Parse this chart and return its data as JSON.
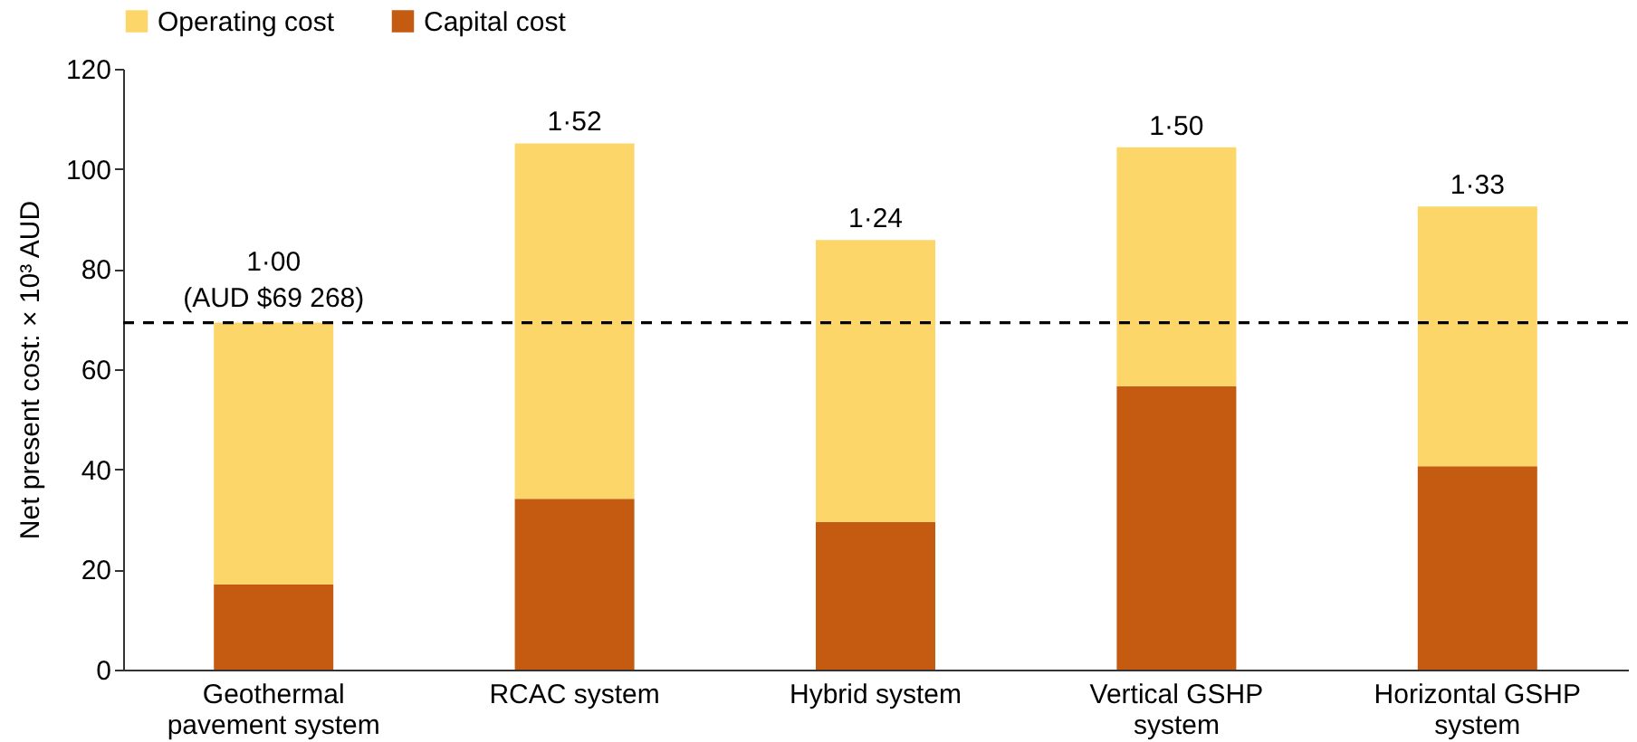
{
  "chart_data": {
    "type": "bar",
    "stacked": true,
    "ylabel": "Net present cost: × 10³ AUD",
    "categories": [
      "Geothermal pavement system",
      "RCAC system",
      "Hybrid system",
      "Vertical GSHP system",
      "Horizontal GSHP system"
    ],
    "series": [
      {
        "name": "Capital cost",
        "color": "#c55a11",
        "values": [
          17.0,
          34.1,
          29.5,
          56.6,
          40.6
        ]
      },
      {
        "name": "Operating cost",
        "color": "#fdd66a",
        "values": [
          52.3,
          71.0,
          56.3,
          47.7,
          51.9
        ]
      }
    ],
    "totals": [
      "1·00",
      "1·52",
      "1·24",
      "1·50",
      "1·33"
    ],
    "annotations": [
      {
        "text": "(AUD $69 268)",
        "x": "Geothermal pavement system",
        "y": 69.268
      }
    ],
    "ref_lines": [
      {
        "axis": "y",
        "value": 69.268,
        "color": "#000000",
        "line_style": "dashed"
      }
    ],
    "ylim": [
      0,
      120
    ],
    "yticks": [
      0,
      20,
      40,
      60,
      80,
      100,
      120
    ],
    "grid": false,
    "legend": "top"
  }
}
